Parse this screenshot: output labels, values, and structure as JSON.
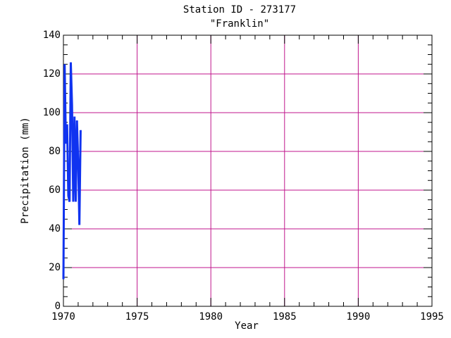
{
  "chart_data": {
    "type": "line",
    "title": "Station ID - 273177",
    "subtitle": "\"Franklin\"",
    "x_label": "Year",
    "y_label": "Precipitation (mm)",
    "x": [
      1970.0,
      1970.083,
      1970.167,
      1970.25,
      1970.333,
      1970.417,
      1970.5,
      1970.583,
      1970.667,
      1970.75,
      1970.833,
      1970.917,
      1971.0,
      1971.083,
      1971.167
    ],
    "series": [
      {
        "name": "Precipitation",
        "color": "#1033f0",
        "values": [
          14,
          125,
          84,
          94,
          57,
          54,
          126,
          104,
          54,
          98,
          54,
          96,
          75,
          42,
          91
        ]
      }
    ],
    "xlim": [
      1970,
      1995
    ],
    "xticks": [
      1970,
      1975,
      1980,
      1985,
      1990,
      1995
    ],
    "ylim": [
      0,
      140
    ],
    "yticks": [
      0,
      20,
      40,
      60,
      80,
      100,
      120,
      140
    ],
    "grid": true,
    "grid_color": "#c0168c"
  }
}
